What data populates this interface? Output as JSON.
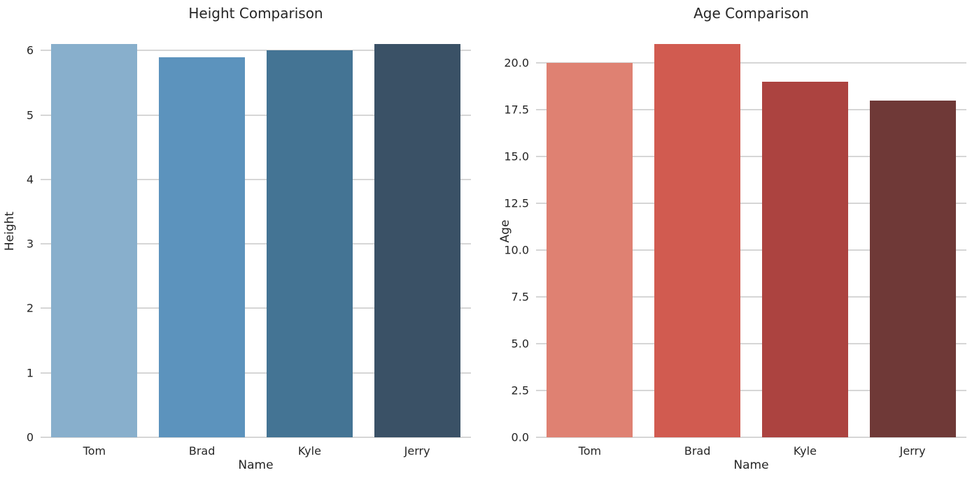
{
  "theme": {
    "background_color": "#ffffff",
    "text_color": "#262626",
    "grid_color": "#d6d6d6"
  },
  "chart_data": [
    {
      "type": "bar",
      "title": "Height Comparison",
      "xlabel": "Name",
      "ylabel": "Height",
      "categories": [
        "Tom",
        "Brad",
        "Kyle",
        "Jerry"
      ],
      "values": [
        6.1,
        5.9,
        6.0,
        6.1
      ],
      "bar_colors": [
        "#88AFCC",
        "#5C93BD",
        "#447494",
        "#3A5166"
      ],
      "yticks": [
        0,
        1,
        2,
        3,
        4,
        5,
        6
      ],
      "ytick_labels": [
        "0",
        "1",
        "2",
        "3",
        "4",
        "5",
        "6"
      ],
      "ylim": [
        0,
        6.405
      ],
      "grid": "horizontal",
      "legend_position": "none"
    },
    {
      "type": "bar",
      "title": "Age Comparison",
      "xlabel": "Name",
      "ylabel": "Age",
      "categories": [
        "Tom",
        "Brad",
        "Kyle",
        "Jerry"
      ],
      "values": [
        20,
        21,
        19,
        18
      ],
      "bar_colors": [
        "#DF8172",
        "#D15B50",
        "#AC4340",
        "#6F3937"
      ],
      "yticks": [
        0,
        2.5,
        5,
        7.5,
        10,
        12.5,
        15,
        17.5,
        20
      ],
      "ytick_labels": [
        "0.0",
        "2.5",
        "5.0",
        "7.5",
        "10.0",
        "12.5",
        "15.0",
        "17.5",
        "20.0"
      ],
      "ylim": [
        0,
        22.05
      ],
      "grid": "horizontal",
      "legend_position": "none"
    }
  ]
}
